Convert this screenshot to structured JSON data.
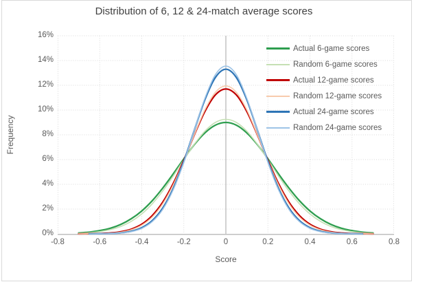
{
  "chart_data": {
    "type": "line",
    "title": "Distribution of 6, 12 & 24-match average scores",
    "xlabel": "Score",
    "ylabel": "Frequency",
    "xlim": [
      -0.8,
      0.8
    ],
    "ylim": [
      0,
      16
    ],
    "units": "percent",
    "grid": "dotted",
    "legend_position": "inside-right",
    "x_tick_labels": [
      "-0.8",
      "-0.6",
      "-0.4",
      "-0.2",
      "0",
      "0.2",
      "0.4",
      "0.6",
      "0.8"
    ],
    "x_tick_values": [
      -0.8,
      -0.6,
      -0.4,
      -0.2,
      0,
      0.2,
      0.4,
      0.6,
      0.8
    ],
    "y_tick_labels": [
      "0%",
      "2%",
      "4%",
      "6%",
      "8%",
      "10%",
      "12%",
      "14%",
      "16%"
    ],
    "y_tick_values": [
      0,
      2,
      4,
      6,
      8,
      10,
      12,
      14,
      16
    ],
    "x": [
      -0.7,
      -0.65,
      -0.6,
      -0.55,
      -0.5,
      -0.45,
      -0.4,
      -0.35,
      -0.3,
      -0.25,
      -0.2,
      -0.15,
      -0.1,
      -0.05,
      0,
      0.05,
      0.1,
      0.15,
      0.2,
      0.25,
      0.3,
      0.35,
      0.4,
      0.45,
      0.5,
      0.55,
      0.6,
      0.65,
      0.7
    ],
    "series": [
      {
        "name": "Actual 6-game scores",
        "color": "#2e9e4f",
        "line_width": 2.3,
        "values": [
          0.07,
          0.14,
          0.26,
          0.45,
          0.76,
          1.22,
          1.85,
          2.68,
          3.7,
          4.85,
          6.06,
          7.21,
          8.15,
          8.78,
          9.0,
          8.78,
          8.15,
          7.21,
          6.06,
          4.85,
          3.7,
          2.68,
          1.85,
          1.22,
          0.76,
          0.45,
          0.26,
          0.14,
          0.07
        ]
      },
      {
        "name": "Random 6-game scores",
        "color": "#c5e0b4",
        "line_width": 1.6,
        "values": [
          0.04,
          0.09,
          0.18,
          0.34,
          0.6,
          1.01,
          1.61,
          2.43,
          3.46,
          4.68,
          5.98,
          7.24,
          8.29,
          9.0,
          9.25,
          9.0,
          8.29,
          7.24,
          5.98,
          4.68,
          3.46,
          2.43,
          1.61,
          1.01,
          0.6,
          0.34,
          0.18,
          0.09,
          0.04
        ]
      },
      {
        "name": "Actual 12-game scores",
        "color": "#c00000",
        "line_width": 2.3,
        "values": [
          0.0,
          0.01,
          0.03,
          0.07,
          0.17,
          0.38,
          0.78,
          1.48,
          2.56,
          4.07,
          5.95,
          8.0,
          9.88,
          11.22,
          11.7,
          11.22,
          9.88,
          8.0,
          5.95,
          4.07,
          2.56,
          1.48,
          0.78,
          0.38,
          0.17,
          0.07,
          0.03,
          0.01,
          0.0
        ]
      },
      {
        "name": "Random 12-game scores",
        "color": "#f8cbad",
        "line_width": 1.6,
        "values": [
          0.0,
          0.01,
          0.02,
          0.06,
          0.14,
          0.33,
          0.7,
          1.36,
          2.43,
          3.95,
          5.88,
          8.02,
          10.01,
          11.43,
          11.95,
          11.43,
          10.01,
          8.02,
          5.88,
          3.95,
          2.43,
          1.36,
          0.7,
          0.33,
          0.14,
          0.06,
          0.02,
          0.01,
          0.0
        ]
      },
      {
        "name": "Actual 24-game scores",
        "color": "#2e75b6",
        "line_width": 2.3,
        "values": [
          0.0,
          0.0,
          0.01,
          0.03,
          0.08,
          0.21,
          0.5,
          1.07,
          2.09,
          3.68,
          5.85,
          8.38,
          10.83,
          12.63,
          13.3,
          12.63,
          10.83,
          8.38,
          5.85,
          3.68,
          2.09,
          1.07,
          0.5,
          0.21,
          0.08,
          0.03,
          0.01,
          0.0,
          0.0
        ]
      },
      {
        "name": "Random 24-game scores",
        "color": "#9dc3e6",
        "line_width": 1.6,
        "values": [
          0.0,
          0.0,
          0.01,
          0.02,
          0.07,
          0.18,
          0.44,
          0.99,
          1.98,
          3.57,
          5.77,
          8.38,
          10.94,
          12.85,
          13.55,
          12.85,
          10.94,
          8.38,
          5.77,
          3.57,
          1.98,
          0.99,
          0.44,
          0.18,
          0.07,
          0.02,
          0.01,
          0.0,
          0.0
        ]
      }
    ]
  },
  "style_colors": {
    "gridline": "#d9d9d9",
    "zero_line": "#a6a6a6",
    "axis_line": "#bfbfbf",
    "tick_text": "#595959",
    "title_text": "#404040",
    "frame_border": "#d9d9d9"
  }
}
